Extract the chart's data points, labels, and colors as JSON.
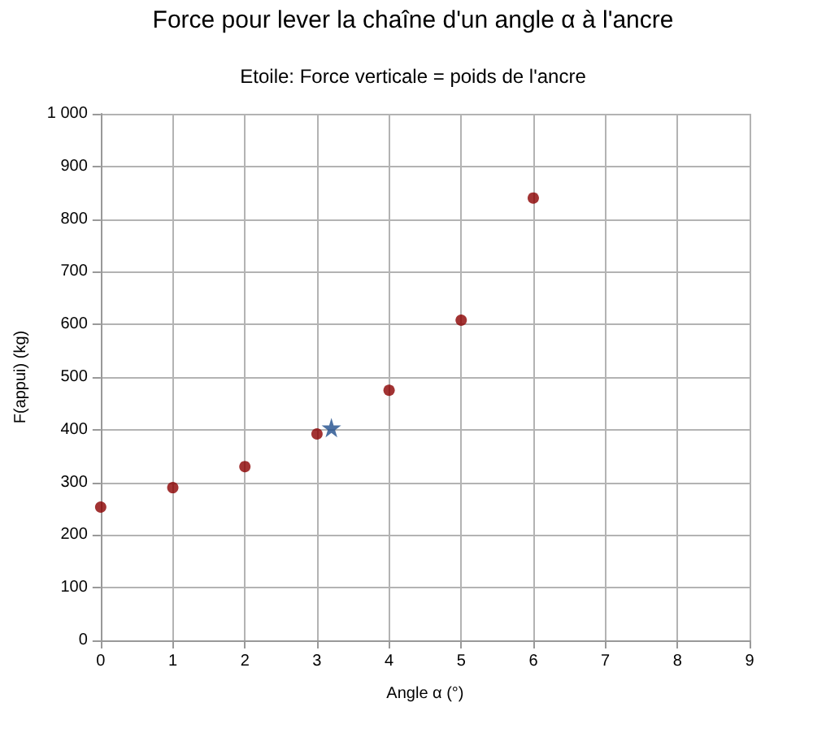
{
  "chart_data": {
    "type": "scatter",
    "title": "Force pour lever la chaîne d'un angle α à l'ancre",
    "subtitle": "Etoile: Force verticale = poids de l'ancre",
    "xlabel": "Angle α (°)",
    "ylabel": "F(appui) (kg)",
    "series": [
      {
        "color": "#8b0000",
        "marker": "circle",
        "x": [
          0,
          1,
          2,
          3,
          4,
          5,
          6
        ],
        "values": [
          253,
          290,
          330,
          392,
          475,
          608,
          840
        ]
      },
      {
        "color": "#1f4e8c",
        "marker": "star",
        "x": [
          3.2
        ],
        "values": [
          404
        ]
      }
    ],
    "xlim": [
      0,
      9
    ],
    "xticks": [
      0,
      1,
      2,
      3,
      4,
      5,
      6,
      7,
      8,
      9
    ],
    "ylim": [
      0,
      1000
    ],
    "yticks": [
      0,
      100,
      200,
      300,
      400,
      500,
      600,
      700,
      800,
      900,
      {
        "value": 1000,
        "label": "1 000"
      }
    ],
    "grid": true
  }
}
